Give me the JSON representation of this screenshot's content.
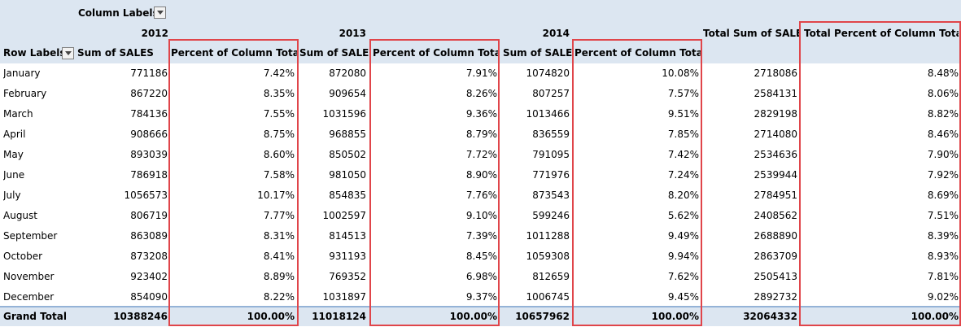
{
  "pivot": {
    "column_labels": "Column Labels",
    "row_labels": "Row Labels",
    "years": [
      "2012",
      "2013",
      "2014"
    ],
    "sum_header": "Sum of SALES",
    "pct_header": "Percent of Column Total",
    "total_sum_header": "Total Sum of SALES",
    "total_pct_header": "Total Percent of Column Total",
    "months": [
      "January",
      "February",
      "March",
      "April",
      "May",
      "June",
      "July",
      "August",
      "September",
      "October",
      "November",
      "December"
    ],
    "rows": [
      [
        "771186",
        "7.42%",
        "872080",
        "7.91%",
        "1074820",
        "10.08%",
        "2718086",
        "8.48%"
      ],
      [
        "867220",
        "8.35%",
        "909654",
        "8.26%",
        "807257",
        "7.57%",
        "2584131",
        "8.06%"
      ],
      [
        "784136",
        "7.55%",
        "1031596",
        "9.36%",
        "1013466",
        "9.51%",
        "2829198",
        "8.82%"
      ],
      [
        "908666",
        "8.75%",
        "968855",
        "8.79%",
        "836559",
        "7.85%",
        "2714080",
        "8.46%"
      ],
      [
        "893039",
        "8.60%",
        "850502",
        "7.72%",
        "791095",
        "7.42%",
        "2534636",
        "7.90%"
      ],
      [
        "786918",
        "7.58%",
        "981050",
        "8.90%",
        "771976",
        "7.24%",
        "2539944",
        "7.92%"
      ],
      [
        "1056573",
        "10.17%",
        "854835",
        "7.76%",
        "873543",
        "8.20%",
        "2784951",
        "8.69%"
      ],
      [
        "806719",
        "7.77%",
        "1002597",
        "9.10%",
        "599246",
        "5.62%",
        "2408562",
        "7.51%"
      ],
      [
        "863089",
        "8.31%",
        "814513",
        "7.39%",
        "1011288",
        "9.49%",
        "2688890",
        "8.39%"
      ],
      [
        "873208",
        "8.41%",
        "931193",
        "8.45%",
        "1059308",
        "9.94%",
        "2863709",
        "8.93%"
      ],
      [
        "923402",
        "8.89%",
        "769352",
        "6.98%",
        "812659",
        "7.62%",
        "2505413",
        "7.81%"
      ],
      [
        "854090",
        "8.22%",
        "1031897",
        "9.37%",
        "1006745",
        "9.45%",
        "2892732",
        "9.02%"
      ]
    ],
    "grand_total_label": "Grand Total",
    "grand_total": [
      "10388246",
      "100.00%",
      "11018124",
      "100.00%",
      "10657962",
      "100.00%",
      "32064332",
      "100.00%"
    ],
    "highlight_color": "#e0454a",
    "header_bg": "#dce6f1"
  }
}
